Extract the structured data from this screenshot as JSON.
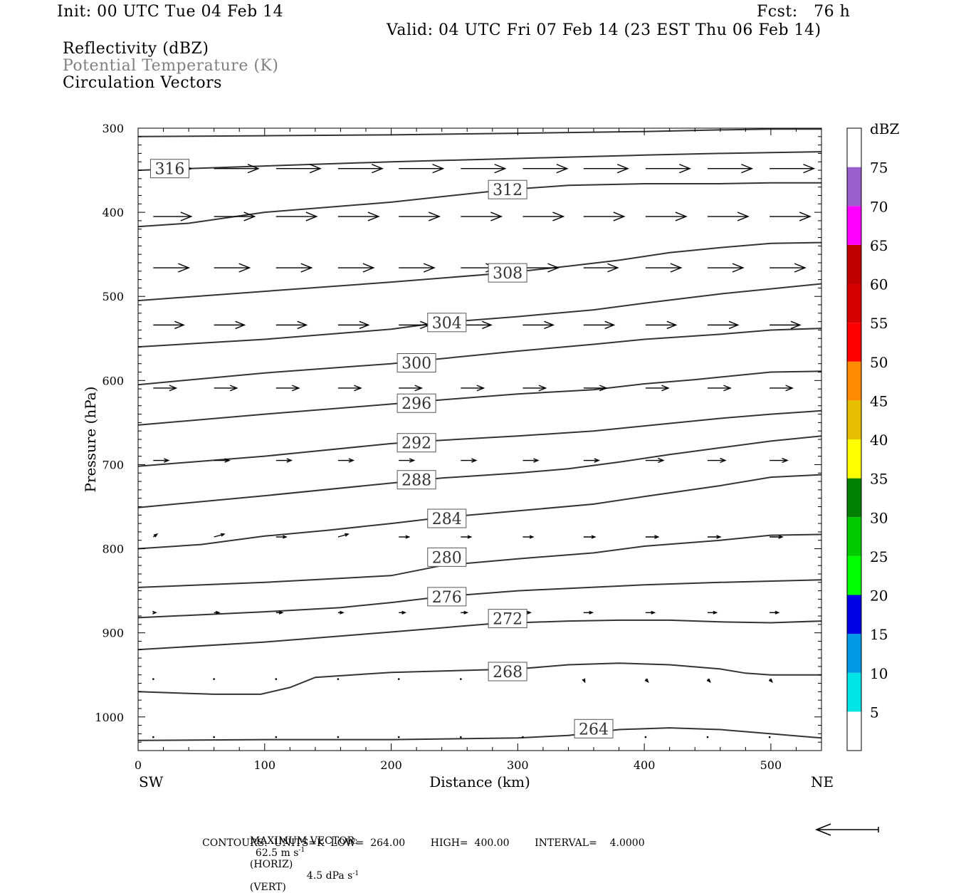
{
  "header": {
    "init": "Init: 00 UTC Tue 04 Feb 14",
    "fcst": "Fcst:   76 h",
    "valid": "Valid: 04 UTC Fri 07 Feb 14 (23 EST Thu 06 Feb 14)",
    "field1": "Reflectivity (dBZ)",
    "field2": "Potential Temperature (K)",
    "field3": "Circulation Vectors",
    "field2_color": "#808080"
  },
  "footer": {
    "max_vector_label": "MAXIMUM VECTOR:",
    "horiz_value": "62.5 m s",
    "horiz_unit": "(HORIZ)",
    "vert_value": "4.5 dPa s",
    "vert_unit": "(VERT)",
    "superscript": "-1",
    "contours": "CONTOURS:  UNITS=K  LOW=  264.00        HIGH=  400.00        INTERVAL=    4.0000"
  },
  "chart_data": {
    "type": "line",
    "xlabel": "Distance (km)",
    "ylabel": "Pressure (hPa)",
    "xlim": [
      0,
      540
    ],
    "ylim": [
      1040,
      300
    ],
    "x_ticks": [
      0,
      100,
      200,
      300,
      400,
      500
    ],
    "y_ticks": [
      300,
      400,
      500,
      600,
      700,
      800,
      900,
      1000
    ],
    "x_end_labels": {
      "left": "SW",
      "right": "NE"
    },
    "colorbar": {
      "title": "dBZ",
      "levels": [
        5,
        10,
        15,
        20,
        25,
        30,
        35,
        40,
        45,
        50,
        55,
        60,
        65,
        70,
        75
      ],
      "colors": [
        "#ffffff",
        "#00e6e6",
        "#0099e6",
        "#0000e6",
        "#00ff00",
        "#00cc00",
        "#008000",
        "#ffff00",
        "#e6c000",
        "#ff8c00",
        "#ff0000",
        "#d60000",
        "#c00000",
        "#ff00ff",
        "#9a5fcc",
        "#ffffff"
      ]
    },
    "contours": [
      {
        "value": 264,
        "label": "264",
        "label_at": [
          360,
          1014
        ],
        "points": [
          [
            0,
            1028
          ],
          [
            100,
            1027
          ],
          [
            200,
            1027
          ],
          [
            300,
            1025
          ],
          [
            340,
            1022
          ],
          [
            380,
            1015
          ],
          [
            420,
            1013
          ],
          [
            460,
            1015
          ],
          [
            500,
            1020
          ],
          [
            540,
            1025
          ]
        ]
      },
      {
        "value": 268,
        "label": "268",
        "label_at": [
          292,
          946
        ],
        "points": [
          [
            0,
            970
          ],
          [
            60,
            973
          ],
          [
            97,
            973
          ],
          [
            120,
            965
          ],
          [
            140,
            953
          ],
          [
            200,
            947
          ],
          [
            300,
            943
          ],
          [
            340,
            938
          ],
          [
            380,
            936
          ],
          [
            420,
            938
          ],
          [
            460,
            943
          ],
          [
            480,
            948
          ],
          [
            500,
            950
          ],
          [
            540,
            950
          ]
        ]
      },
      {
        "value": 272,
        "label": "272",
        "label_at": [
          292,
          883
        ],
        "points": [
          [
            0,
            920
          ],
          [
            100,
            911
          ],
          [
            200,
            899
          ],
          [
            280,
            889
          ],
          [
            340,
            886
          ],
          [
            380,
            885
          ],
          [
            420,
            885
          ],
          [
            460,
            887
          ],
          [
            500,
            888
          ],
          [
            540,
            886
          ]
        ]
      },
      {
        "value": 276,
        "label": "276",
        "label_at": [
          244,
          857
        ],
        "points": [
          [
            0,
            882
          ],
          [
            100,
            875
          ],
          [
            160,
            870
          ],
          [
            200,
            864
          ],
          [
            240,
            857
          ],
          [
            300,
            850
          ],
          [
            400,
            843
          ],
          [
            460,
            840
          ],
          [
            540,
            837
          ]
        ]
      },
      {
        "value": 280,
        "label": "280",
        "label_at": [
          244,
          810
        ],
        "points": [
          [
            0,
            846
          ],
          [
            100,
            840
          ],
          [
            200,
            832
          ],
          [
            240,
            820
          ],
          [
            300,
            812
          ],
          [
            360,
            805
          ],
          [
            400,
            797
          ],
          [
            460,
            790
          ],
          [
            500,
            784
          ],
          [
            540,
            783
          ]
        ]
      },
      {
        "value": 284,
        "label": "284",
        "label_at": [
          244,
          764
        ],
        "points": [
          [
            0,
            800
          ],
          [
            50,
            795
          ],
          [
            100,
            785
          ],
          [
            150,
            778
          ],
          [
            200,
            770
          ],
          [
            240,
            763
          ],
          [
            300,
            755
          ],
          [
            360,
            747
          ],
          [
            400,
            738
          ],
          [
            460,
            725
          ],
          [
            500,
            715
          ],
          [
            540,
            712
          ]
        ]
      },
      {
        "value": 288,
        "label": "288",
        "label_at": [
          220,
          718
        ],
        "points": [
          [
            0,
            751
          ],
          [
            100,
            737
          ],
          [
            200,
            722
          ],
          [
            240,
            716
          ],
          [
            300,
            710
          ],
          [
            340,
            705
          ],
          [
            380,
            697
          ],
          [
            420,
            688
          ],
          [
            460,
            680
          ],
          [
            500,
            672
          ],
          [
            540,
            666
          ]
        ]
      },
      {
        "value": 292,
        "label": "292",
        "label_at": [
          220,
          674
        ],
        "points": [
          [
            0,
            702
          ],
          [
            100,
            690
          ],
          [
            200,
            675
          ],
          [
            240,
            671
          ],
          [
            300,
            666
          ],
          [
            360,
            660
          ],
          [
            400,
            654
          ],
          [
            460,
            645
          ],
          [
            500,
            640
          ],
          [
            540,
            636
          ]
        ]
      },
      {
        "value": 296,
        "label": "296",
        "label_at": [
          220,
          627
        ],
        "points": [
          [
            0,
            653
          ],
          [
            100,
            640
          ],
          [
            200,
            628
          ],
          [
            240,
            623
          ],
          [
            300,
            616
          ],
          [
            360,
            611
          ],
          [
            400,
            604
          ],
          [
            440,
            599
          ],
          [
            500,
            590
          ],
          [
            540,
            589
          ]
        ]
      },
      {
        "value": 300,
        "label": "300",
        "label_at": [
          220,
          579
        ],
        "points": [
          [
            0,
            605
          ],
          [
            100,
            591
          ],
          [
            200,
            580
          ],
          [
            240,
            574
          ],
          [
            300,
            565
          ],
          [
            360,
            557
          ],
          [
            400,
            551
          ],
          [
            460,
            545
          ],
          [
            500,
            540
          ],
          [
            540,
            538
          ]
        ]
      },
      {
        "value": 304,
        "label": "304",
        "label_at": [
          244,
          531
        ],
        "points": [
          [
            0,
            560
          ],
          [
            100,
            551
          ],
          [
            200,
            539
          ],
          [
            240,
            531
          ],
          [
            300,
            524
          ],
          [
            360,
            516
          ],
          [
            400,
            508
          ],
          [
            460,
            497
          ],
          [
            500,
            491
          ],
          [
            540,
            485
          ]
        ]
      },
      {
        "value": 308,
        "label": "308",
        "label_at": [
          292,
          472
        ],
        "points": [
          [
            0,
            505
          ],
          [
            100,
            494
          ],
          [
            200,
            483
          ],
          [
            292,
            472
          ],
          [
            340,
            464
          ],
          [
            380,
            457
          ],
          [
            420,
            448
          ],
          [
            460,
            442
          ],
          [
            500,
            437
          ],
          [
            540,
            436
          ]
        ]
      },
      {
        "value": 312,
        "label": "312",
        "label_at": [
          292,
          373
        ],
        "points": [
          [
            0,
            417
          ],
          [
            40,
            413
          ],
          [
            100,
            400
          ],
          [
            200,
            388
          ],
          [
            292,
            373
          ],
          [
            340,
            368
          ],
          [
            400,
            366
          ],
          [
            460,
            366
          ],
          [
            500,
            365
          ],
          [
            540,
            365
          ]
        ]
      },
      {
        "value": 316,
        "label": "316",
        "label_at": [
          25,
          348
        ],
        "points": [
          [
            0,
            350
          ],
          [
            100,
            345
          ],
          [
            200,
            340
          ],
          [
            300,
            336
          ],
          [
            400,
            332
          ],
          [
            460,
            330
          ],
          [
            500,
            329
          ],
          [
            540,
            328
          ]
        ]
      },
      {
        "value": 320,
        "points": [
          [
            0,
            310
          ],
          [
            100,
            309
          ],
          [
            200,
            308
          ],
          [
            300,
            306
          ],
          [
            400,
            304
          ],
          [
            460,
            302
          ],
          [
            500,
            301
          ],
          [
            540,
            301
          ]
        ]
      }
    ],
    "vector_levels_hpa": [
      348,
      405,
      466,
      534,
      609,
      695,
      786,
      876,
      955,
      1024
    ],
    "vector_x_km": [
      12,
      60,
      109,
      158,
      206,
      255,
      304,
      352,
      401,
      450,
      499
    ],
    "vectors": [
      {
        "p": 348,
        "dx": [
          30,
          35,
          35,
          35,
          35,
          35,
          35,
          35,
          35,
          35,
          35
        ],
        "dy": [
          0,
          0,
          0,
          0,
          0,
          0,
          0,
          0,
          0,
          0,
          0
        ]
      },
      {
        "p": 405,
        "dx": [
          30,
          32,
          32,
          32,
          32,
          32,
          32,
          32,
          32,
          32,
          32
        ],
        "dy": [
          0,
          0,
          0,
          0,
          0,
          0,
          0,
          0,
          0,
          0,
          0
        ]
      },
      {
        "p": 466,
        "dx": [
          28,
          28,
          28,
          28,
          28,
          28,
          28,
          27,
          28,
          28,
          28
        ],
        "dy": [
          0,
          0,
          0,
          0,
          0,
          0,
          0,
          0,
          0,
          0,
          0
        ]
      },
      {
        "p": 534,
        "dx": [
          24,
          24,
          24,
          24,
          24,
          24,
          24,
          24,
          24,
          24,
          24
        ],
        "dy": [
          0,
          0,
          0,
          0,
          0,
          0,
          0,
          0,
          0,
          0,
          0
        ]
      },
      {
        "p": 609,
        "dx": [
          18,
          18,
          18,
          18,
          18,
          18,
          18,
          18,
          18,
          18,
          18
        ],
        "dy": [
          0,
          0,
          0,
          0,
          0,
          0,
          0,
          0,
          0,
          0,
          0
        ]
      },
      {
        "p": 695,
        "dx": [
          12,
          12,
          12,
          12,
          12,
          12,
          12,
          12,
          14,
          14,
          14
        ],
        "dy": [
          0,
          0,
          0,
          0,
          0,
          0,
          0,
          0,
          0,
          0,
          0
        ]
      },
      {
        "p": 786,
        "dx": [
          3,
          8,
          8,
          8,
          8,
          8,
          8,
          9,
          10,
          10,
          10
        ],
        "dy": [
          -1,
          -1,
          0,
          -1,
          0,
          0,
          0,
          0,
          0,
          0,
          0
        ]
      },
      {
        "p": 876,
        "dx": [
          2,
          4,
          5,
          4,
          5,
          5,
          6,
          7,
          7,
          7,
          7
        ],
        "dy": [
          0,
          0,
          0,
          0,
          0,
          0,
          0,
          0,
          0,
          0,
          0
        ]
      },
      {
        "p": 955,
        "dx": [
          0,
          1,
          1,
          0,
          0,
          0,
          0,
          1,
          2,
          2,
          2
        ],
        "dy": [
          0,
          0,
          0,
          0,
          0,
          0,
          0,
          1,
          1,
          1,
          1
        ]
      },
      {
        "p": 1024,
        "dx": [
          0,
          0,
          0,
          0,
          0,
          0,
          0,
          0,
          0,
          0,
          0
        ],
        "dy": [
          0,
          0,
          0,
          0,
          0,
          0,
          0,
          0,
          0,
          0,
          0
        ]
      }
    ],
    "reference_vector": {
      "length_km": 50,
      "direction": "left"
    }
  }
}
